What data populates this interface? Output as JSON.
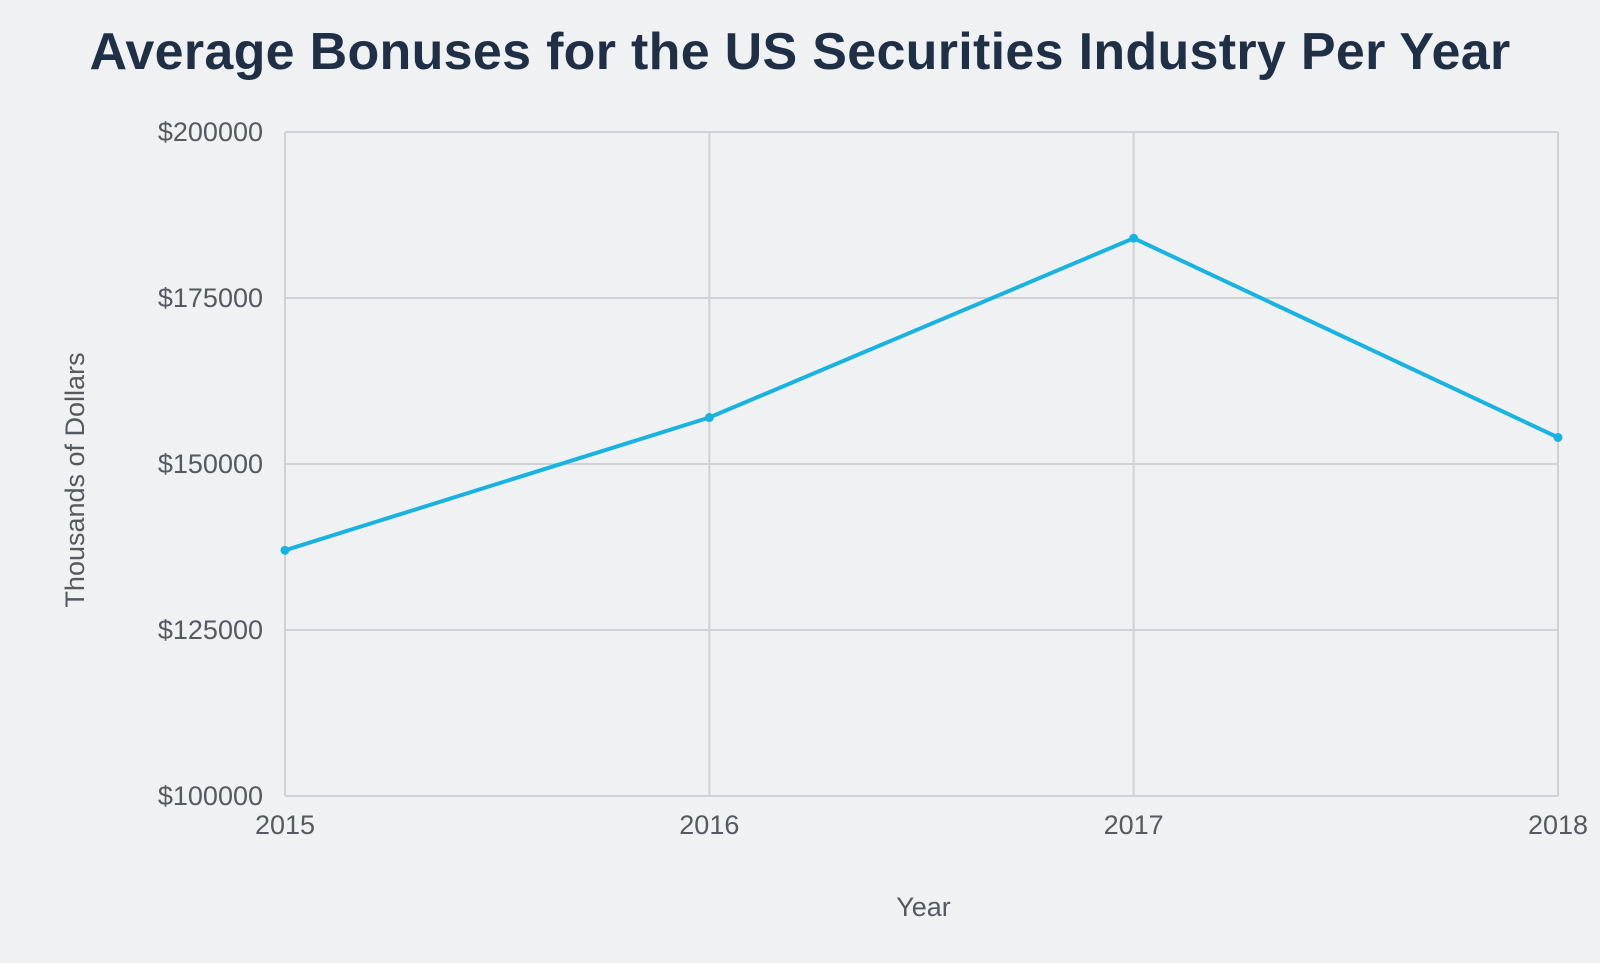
{
  "chart_data": {
    "type": "line",
    "title": "Average Bonuses for the US Securities Industry Per Year",
    "xlabel": "Year",
    "ylabel": "Thousands of Dollars",
    "x": [
      "2015",
      "2016",
      "2017",
      "2018"
    ],
    "series": [
      {
        "values": [
          137000,
          157000,
          184000,
          154000
        ],
        "color": "#1ab3e0"
      }
    ],
    "ylim": [
      100000,
      200000
    ],
    "yticks": [
      100000,
      125000,
      150000,
      175000,
      200000
    ],
    "ytick_labels": [
      "$100000",
      "$125000",
      "$150000",
      "$175000",
      "$200000"
    ],
    "grid": true,
    "legend": "none"
  },
  "colors": {
    "background": "#f0f1f3",
    "grid": "#cfd2d6",
    "title": "#1f3046",
    "text": "#555a60",
    "line": "#1ab3e0"
  }
}
